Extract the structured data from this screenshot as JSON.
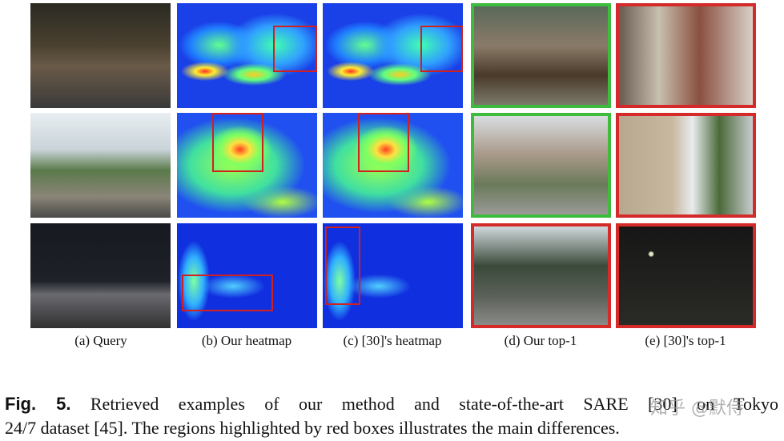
{
  "figure": {
    "panel_labels": [
      "(a) Query",
      "(b) Our heatmap",
      "(c) [30]'s heatmap",
      "(d) Our top-1",
      "(e) [30]'s top-1"
    ]
  },
  "caption": {
    "label": "Fig. 5.",
    "lines": [
      "Retrieved examples of our method and state-of-the-art SARE [30] on Tokyo",
      "24/7 dataset [45]. The regions highlighted by red boxes illustrates the main differences."
    ]
  },
  "watermark": "知乎 @默侍"
}
